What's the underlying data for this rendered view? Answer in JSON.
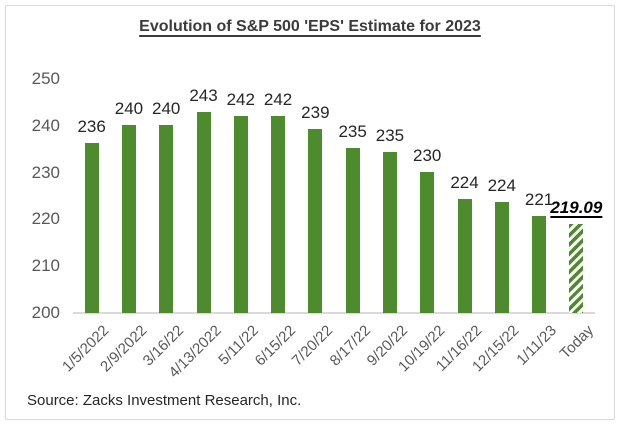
{
  "title": "Evolution of S&P 500 'EPS' Estimate for 2023",
  "source_note": "Source: Zacks Investment Research, Inc.",
  "colors": {
    "background": "#ffffff",
    "frame_border": "#d9d9d9",
    "bar": "#4e8b2f",
    "hatch_stripe": "#4e8b2f",
    "hatch_gap": "#ffffff",
    "baseline": "#d9d9d9",
    "axis_text": "#595959",
    "value_text": "#262626",
    "title_text": "#3b3b3b",
    "final_value_text": "#000000"
  },
  "chart_data": {
    "type": "bar",
    "title": "Evolution of S&P 500 'EPS' Estimate for 2023",
    "categories": [
      "1/5/2022",
      "2/9/2022",
      "3/16/22",
      "4/13/2022",
      "5/11/22",
      "6/15/22",
      "7/20/22",
      "8/17/22",
      "9/20/22",
      "10/19/22",
      "11/16/22",
      "12/15/22",
      "1/11/23",
      "Today"
    ],
    "values": [
      236,
      240,
      240,
      243,
      242,
      242,
      239,
      235,
      235,
      230,
      224,
      224,
      221,
      219.09
    ],
    "value_labels": [
      "236",
      "240",
      "240",
      "243",
      "242",
      "242",
      "239",
      "235",
      "235",
      "230",
      "224",
      "224",
      "221",
      "219.09"
    ],
    "bar_heights_rendered": [
      236.4,
      240.1,
      240.2,
      242.9,
      242.2,
      242.2,
      239.3,
      235.3,
      234.5,
      230.2,
      224.4,
      223.7,
      220.8,
      219.09
    ],
    "ylim": [
      200,
      250
    ],
    "yticks": [
      250,
      240,
      230,
      220,
      210,
      200
    ],
    "xlabel": "",
    "ylabel": "",
    "grid": false,
    "legend": "none",
    "x_tick_rotation_deg": -45,
    "last_bar_style": "diagonal-hatch",
    "last_value_emphasis": "bold-italic-underline"
  }
}
